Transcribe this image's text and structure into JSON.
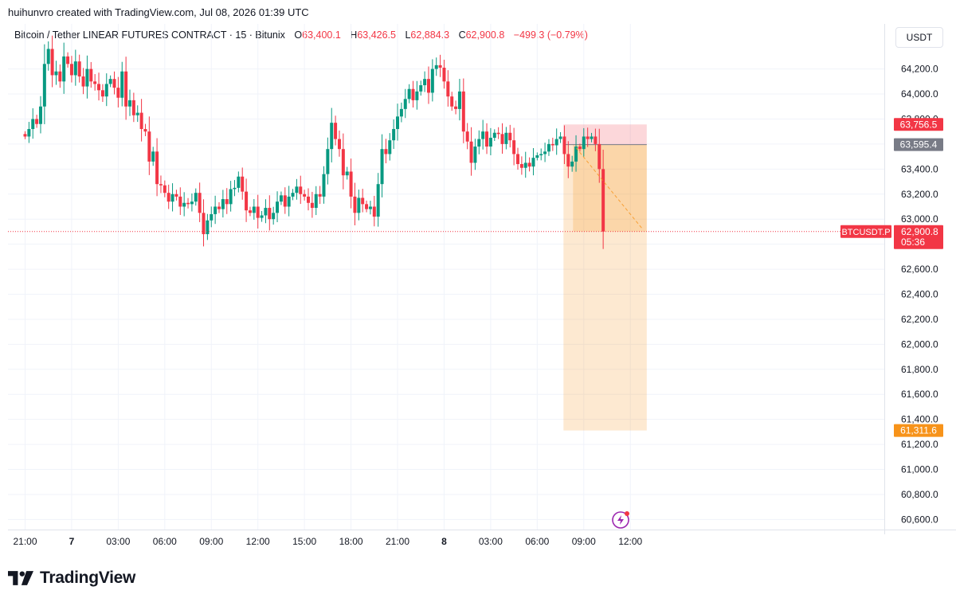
{
  "credit": "huihunvro created with TradingView.com, Jul 08, 2026 01:39 UTC",
  "header": {
    "symbol": "Bitcoin / Tether LINEAR FUTURES CONTRACT · 15 · Bitunix",
    "o_label": "O",
    "o_value": "63,400.1",
    "h_label": "H",
    "h_value": "63,426.5",
    "l_label": "L",
    "l_value": "62,884.3",
    "c_label": "C",
    "c_value": "62,900.8",
    "change": "−499.3 (−0.79%)"
  },
  "currency_button": "USDT",
  "brand": "TradingView",
  "colors": {
    "up": "#089981",
    "down": "#f23645",
    "target": "#f7931a",
    "stop": "#f7525f",
    "entry": "#787b86"
  },
  "chart_data": {
    "type": "candlestick",
    "y_axis": {
      "range": [
        60520,
        64560
      ],
      "ticks": [
        "64,200.0",
        "64,000.0",
        "63,800.0",
        "63,600.0",
        "63,400.0",
        "63,200.0",
        "63,000.0",
        "62,800.0",
        "62,600.0",
        "62,400.0",
        "62,200.0",
        "62,000.0",
        "61,800.0",
        "61,600.0",
        "61,400.0",
        "61,200.0",
        "61,000.0",
        "60,800.0",
        "60,600.0"
      ],
      "tick_values": [
        64200,
        64000,
        63800,
        63600,
        63400,
        63200,
        63000,
        62800,
        62600,
        62400,
        62200,
        62000,
        61800,
        61600,
        61400,
        61200,
        61000,
        60800,
        60600
      ]
    },
    "x_axis": {
      "labels": [
        {
          "t": "21:00",
          "bold": false,
          "h": 0
        },
        {
          "t": "7",
          "bold": true,
          "h": 3
        },
        {
          "t": "03:00",
          "bold": false,
          "h": 6
        },
        {
          "t": "06:00",
          "bold": false,
          "h": 9
        },
        {
          "t": "09:00",
          "bold": false,
          "h": 12
        },
        {
          "t": "12:00",
          "bold": false,
          "h": 15
        },
        {
          "t": "15:00",
          "bold": false,
          "h": 18
        },
        {
          "t": "18:00",
          "bold": false,
          "h": 21
        },
        {
          "t": "21:00",
          "bold": false,
          "h": 24
        },
        {
          "t": "8",
          "bold": true,
          "h": 27
        },
        {
          "t": "03:00",
          "bold": false,
          "h": 30
        },
        {
          "t": "06:00",
          "bold": false,
          "h": 33
        },
        {
          "t": "09:00",
          "bold": false,
          "h": 36
        },
        {
          "t": "12:00",
          "bold": false,
          "h": 39
        }
      ]
    },
    "closes": [
      63660,
      63720,
      63800,
      63760,
      63900,
      64240,
      64360,
      64150,
      64180,
      64100,
      64300,
      64240,
      64150,
      64260,
      64140,
      64060,
      64200,
      64100,
      64080,
      64030,
      63980,
      64080,
      64120,
      64050,
      63970,
      64180,
      63900,
      63950,
      63830,
      63850,
      63720,
      63700,
      63460,
      63540,
      63280,
      63270,
      63210,
      63140,
      63200,
      63180,
      63100,
      63130,
      63120,
      63140,
      63210,
      63050,
      62880,
      62990,
      63040,
      63100,
      63080,
      63160,
      63120,
      63240,
      63250,
      63340,
      63220,
      63070,
      63050,
      63100,
      63010,
      63030,
      63090,
      63000,
      63050,
      63140,
      63190,
      63100,
      63180,
      63210,
      63260,
      63200,
      63180,
      63130,
      63090,
      63200,
      63180,
      63360,
      63560,
      63770,
      63640,
      63560,
      63350,
      63380,
      63180,
      63050,
      63170,
      63120,
      63080,
      63100,
      63020,
      63280,
      63560,
      63520,
      63630,
      63720,
      63820,
      63880,
      63960,
      64040,
      63950,
      64020,
      64070,
      64120,
      64010,
      64200,
      64230,
      64210,
      64100,
      63980,
      63900,
      63880,
      64020,
      63700,
      63620,
      63450,
      63580,
      63640,
      63700,
      63580,
      63650,
      63690,
      63680,
      63600,
      63690,
      63630,
      63520,
      63440,
      63410,
      63450,
      63420,
      63490,
      63510,
      63520,
      63540,
      63600,
      63590,
      63640,
      63660,
      63520,
      63420,
      63460,
      63580,
      63560,
      63660,
      63640,
      63660,
      63600,
      63400,
      62900.8
    ],
    "trade": {
      "stop": "63,756.5",
      "stop_v": 63756.5,
      "entry": "63,595.4",
      "entry_v": 63595.4,
      "target": "61,311.6",
      "target_v": 61311.6,
      "start_index": 140,
      "end_index": 159
    },
    "last_price": {
      "symbol": "BTCUSDT.P",
      "value": "62,900.8",
      "value_v": 62900.8,
      "countdown": "05:36"
    }
  }
}
